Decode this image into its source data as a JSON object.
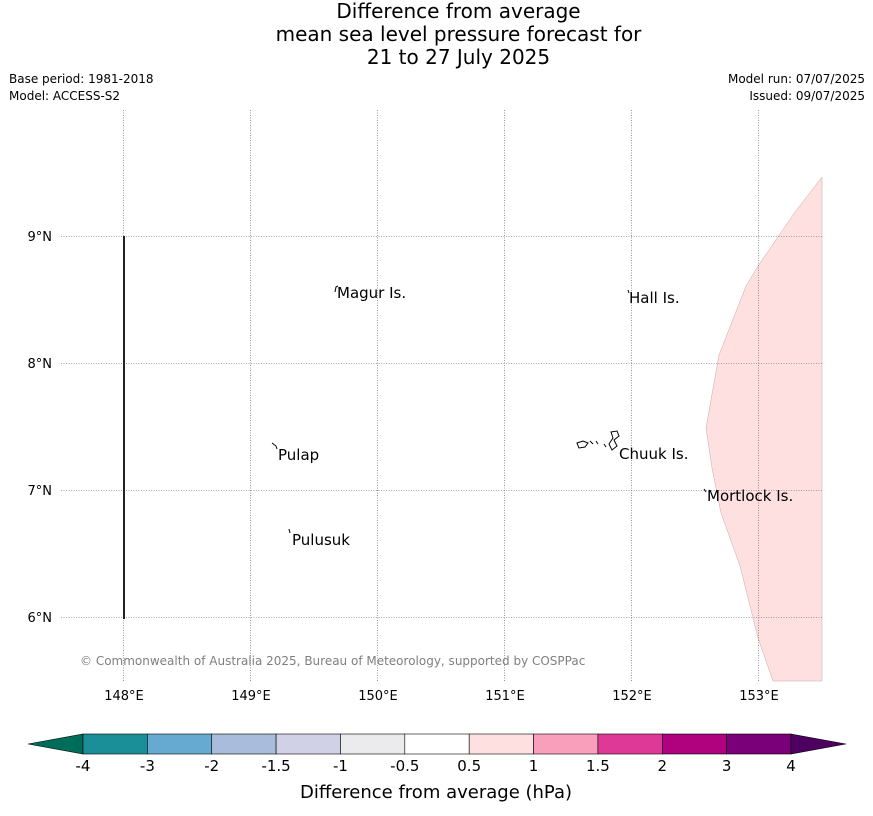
{
  "title": {
    "line1": "Difference from average",
    "line2": "mean sea level pressure forecast for",
    "line3": "21 to 27 July 2025"
  },
  "meta": {
    "base_period": "Base period: 1981-2018",
    "model": "Model: ACCESS-S2",
    "model_run": "Model run: 07/07/2025",
    "issued": "Issued: 09/07/2025"
  },
  "map": {
    "lon_ticks": [
      "148°E",
      "149°E",
      "150°E",
      "151°E",
      "152°E",
      "153°E"
    ],
    "lat_ticks": [
      "9°N",
      "8°N",
      "7°N",
      "6°N"
    ],
    "grid": true,
    "places": [
      {
        "name": "Magur Is."
      },
      {
        "name": "Hall Is."
      },
      {
        "name": "Pulap"
      },
      {
        "name": "Chuuk Is."
      },
      {
        "name": "Mortlock Is."
      },
      {
        "name": "Pulusuk"
      }
    ],
    "anomaly_fill_color": "#fde0df",
    "copyright": "© Commonwealth of Australia 2025, Bureau of Meteorology, supported by COSPPac"
  },
  "colorbar": {
    "label": "Difference from average (hPa)",
    "tick_labels": [
      "-4",
      "-3",
      "-2",
      "-1.5",
      "-1",
      "-0.5",
      "0.5",
      "1",
      "1.5",
      "2",
      "3",
      "4"
    ],
    "low_extend_color": "#006d5b",
    "high_extend_color": "#4d0060",
    "colors": [
      "#1a8f98",
      "#67aad1",
      "#a9bcdc",
      "#d0d0e6",
      "#ebebed",
      "#ffffff",
      "#fde0df",
      "#f99fbc",
      "#df3997",
      "#b0017e",
      "#7a0079"
    ]
  }
}
